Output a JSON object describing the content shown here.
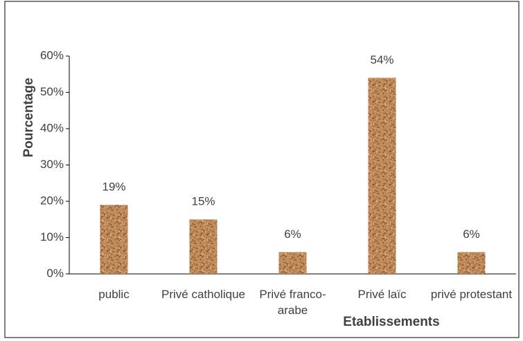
{
  "chart_data": {
    "type": "bar",
    "categories": [
      "public",
      "Privé catholique",
      "Privé franco-arabe",
      "Privé laïc",
      "privé protestant"
    ],
    "values": [
      19,
      15,
      6,
      54,
      6
    ],
    "value_labels": [
      "19%",
      "15%",
      "6%",
      "54%",
      "6%"
    ],
    "ylim": [
      0,
      60
    ],
    "yticks": [
      {
        "value": 0,
        "label": "0%"
      },
      {
        "value": 10,
        "label": "10%"
      },
      {
        "value": 20,
        "label": "20%"
      },
      {
        "value": 30,
        "label": "30%"
      },
      {
        "value": 40,
        "label": "40%"
      },
      {
        "value": 50,
        "label": "50%"
      },
      {
        "value": 60,
        "label": "60%"
      }
    ],
    "x_label": "Etablissements",
    "y_label": "Pourcentage",
    "grid": false
  }
}
